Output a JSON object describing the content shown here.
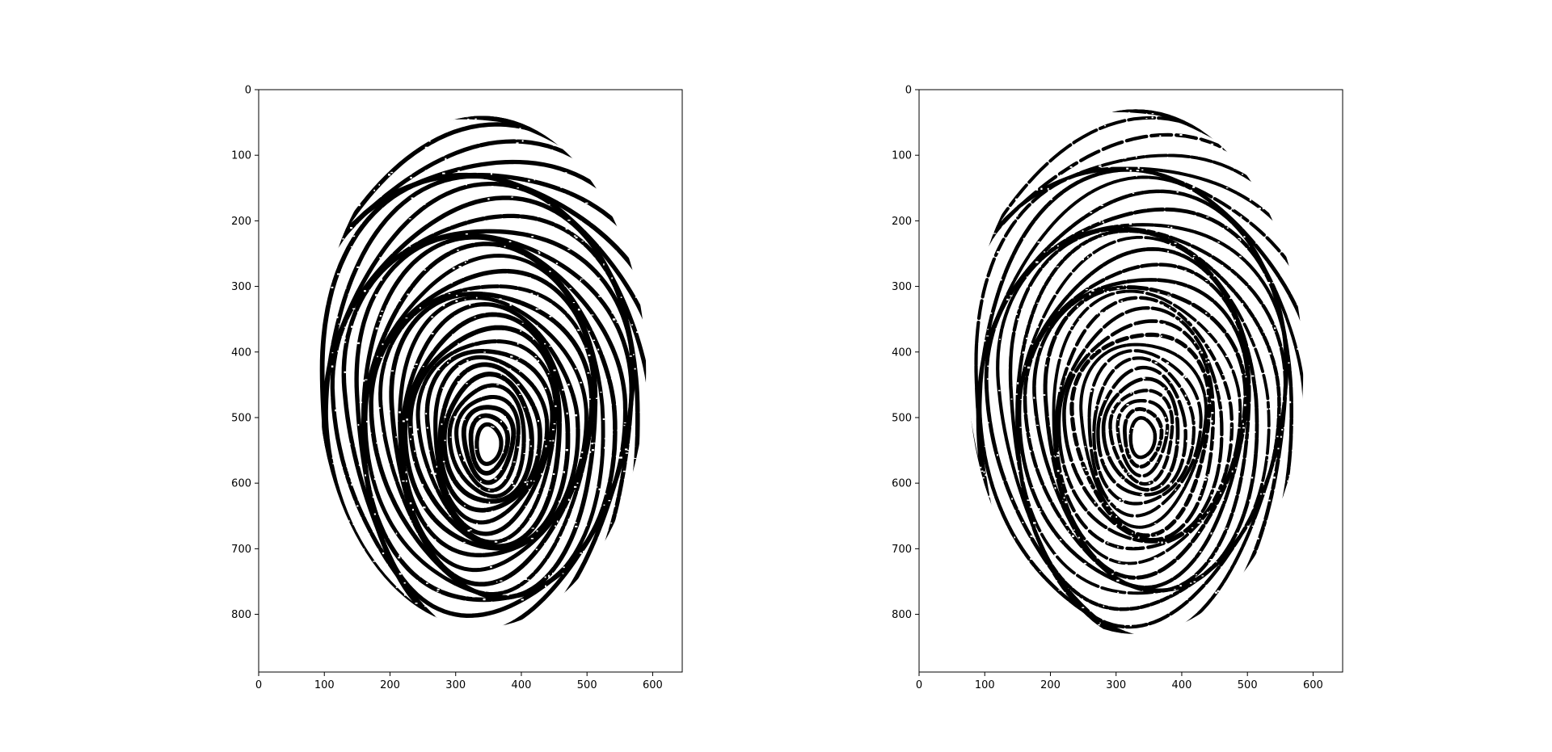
{
  "figure": {
    "panel_count": 2,
    "colors": {
      "background": "#ffffff",
      "ink": "#000000",
      "axes": "#000000"
    }
  },
  "panels": [
    {
      "name": "left",
      "image": {
        "width": 645,
        "height": 888,
        "description": ""
      },
      "x_ticks": [
        "0",
        "100",
        "200",
        "300",
        "400",
        "500",
        "600"
      ],
      "y_ticks": [
        "0",
        "100",
        "200",
        "300",
        "400",
        "500",
        "600",
        "700",
        "800"
      ],
      "x_tick_values": [
        0,
        100,
        200,
        300,
        400,
        500,
        600
      ],
      "y_tick_values": [
        0,
        100,
        200,
        300,
        400,
        500,
        600,
        700,
        800
      ],
      "image_extent": {
        "xlim": [
          0,
          645
        ],
        "ylim": [
          888,
          0
        ]
      },
      "print": {
        "core": [
          350,
          540
        ],
        "rx": 245,
        "ry": 390,
        "ridge_weight": 6.2,
        "density": "dense"
      }
    },
    {
      "name": "right",
      "image": {
        "width": 645,
        "height": 888,
        "description": ""
      },
      "x_ticks": [
        "0",
        "100",
        "200",
        "300",
        "400",
        "500",
        "600"
      ],
      "y_ticks": [
        "0",
        "100",
        "200",
        "300",
        "400",
        "500",
        "600",
        "700",
        "800"
      ],
      "x_tick_values": [
        0,
        100,
        200,
        300,
        400,
        500,
        600
      ],
      "y_tick_values": [
        0,
        100,
        200,
        300,
        400,
        500,
        600,
        700,
        800
      ],
      "image_extent": {
        "xlim": [
          0,
          645
        ],
        "ylim": [
          888,
          0
        ]
      },
      "print": {
        "core": [
          340,
          530
        ],
        "rx": 250,
        "ry": 400,
        "ridge_weight": 5.2,
        "density": "sparser"
      }
    }
  ]
}
